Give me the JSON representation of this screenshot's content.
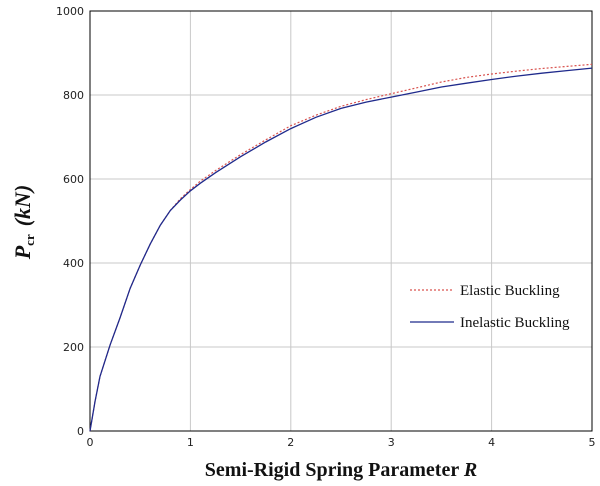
{
  "chart_data": {
    "type": "line",
    "title": "",
    "xlabel": "Semi-Rigid Spring Parameter R",
    "xlabel_main": "Semi-Rigid Spring Parameter ",
    "xlabel_symbol": "R",
    "ylabel": "Pcr (kN)",
    "ylabel_symbol": "P",
    "ylabel_subscript": "cr",
    "ylabel_unit": "(kN)",
    "xlim": [
      0,
      5
    ],
    "ylim": [
      0,
      1000
    ],
    "xticks": [
      0,
      1,
      2,
      3,
      4,
      5
    ],
    "yticks": [
      0,
      200,
      400,
      600,
      800,
      1000
    ],
    "grid": true,
    "legend_position": "right-middle",
    "series": [
      {
        "name": "Elastic Buckling",
        "style": "dotted",
        "color": "#d9534f",
        "points": [
          [
            0,
            0
          ],
          [
            0.05,
            70
          ],
          [
            0.1,
            130
          ],
          [
            0.2,
            205
          ],
          [
            0.3,
            270
          ],
          [
            0.4,
            340
          ],
          [
            0.5,
            395
          ],
          [
            0.6,
            445
          ],
          [
            0.7,
            490
          ],
          [
            0.8,
            525
          ],
          [
            0.9,
            553
          ],
          [
            1.0,
            575
          ],
          [
            1.1,
            595
          ],
          [
            1.25,
            620
          ],
          [
            1.5,
            658
          ],
          [
            1.75,
            693
          ],
          [
            2.0,
            727
          ],
          [
            2.25,
            752
          ],
          [
            2.5,
            773
          ],
          [
            2.75,
            789
          ],
          [
            3.0,
            803
          ],
          [
            3.25,
            817
          ],
          [
            3.5,
            831
          ],
          [
            3.75,
            842
          ],
          [
            4.0,
            850
          ],
          [
            4.25,
            857
          ],
          [
            4.5,
            863
          ],
          [
            4.75,
            868
          ],
          [
            5.0,
            873
          ]
        ]
      },
      {
        "name": "Inelastic Buckling",
        "style": "solid",
        "color": "#1f2a8c",
        "points": [
          [
            0,
            0
          ],
          [
            0.05,
            70
          ],
          [
            0.1,
            130
          ],
          [
            0.2,
            205
          ],
          [
            0.3,
            270
          ],
          [
            0.4,
            340
          ],
          [
            0.5,
            395
          ],
          [
            0.6,
            445
          ],
          [
            0.7,
            490
          ],
          [
            0.8,
            525
          ],
          [
            0.9,
            550
          ],
          [
            1.0,
            572
          ],
          [
            1.1,
            590
          ],
          [
            1.25,
            615
          ],
          [
            1.5,
            653
          ],
          [
            1.75,
            688
          ],
          [
            2.0,
            720
          ],
          [
            2.25,
            747
          ],
          [
            2.5,
            768
          ],
          [
            2.75,
            783
          ],
          [
            3.0,
            795
          ],
          [
            3.25,
            807
          ],
          [
            3.5,
            819
          ],
          [
            3.75,
            828
          ],
          [
            4.0,
            837
          ],
          [
            4.25,
            845
          ],
          [
            4.5,
            852
          ],
          [
            4.75,
            858
          ],
          [
            5.0,
            864
          ]
        ]
      }
    ]
  }
}
